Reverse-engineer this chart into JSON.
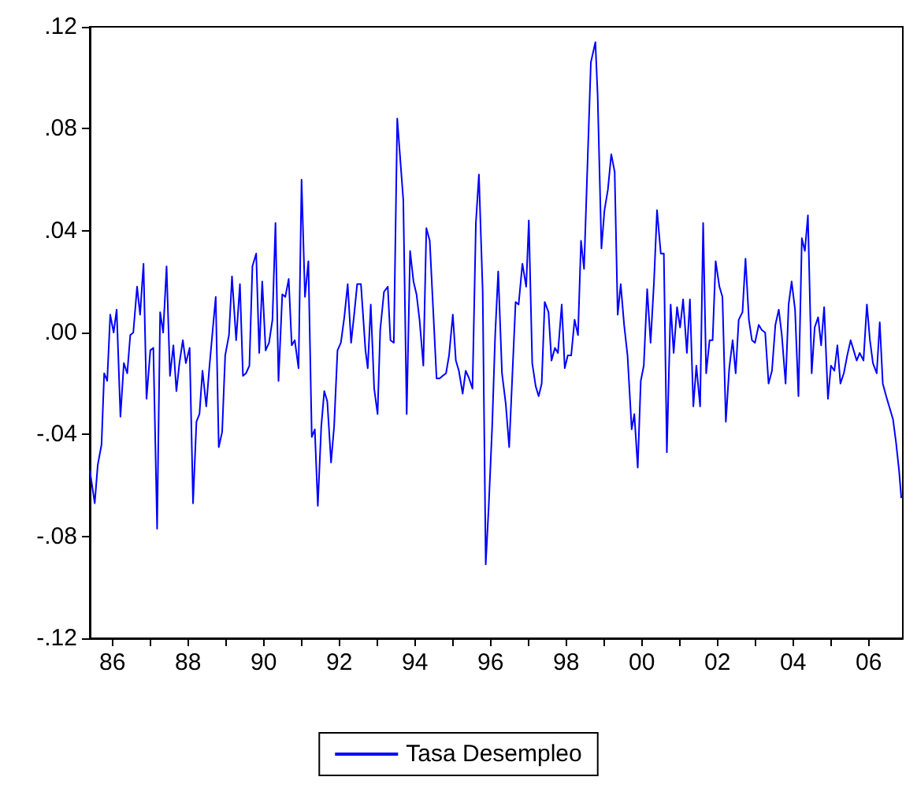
{
  "chart_data": {
    "type": "line",
    "x": [
      1985.4,
      1985.53,
      1985.61,
      1985.71,
      1985.78,
      1985.86,
      1985.94,
      1986.03,
      1986.11,
      1986.21,
      1986.3,
      1986.39,
      1986.47,
      1986.55,
      1986.65,
      1986.73,
      1986.82,
      1986.9,
      1987.0,
      1987.08,
      1987.18,
      1987.26,
      1987.34,
      1987.43,
      1987.52,
      1987.61,
      1987.69,
      1987.77,
      1987.86,
      1987.94,
      1988.04,
      1988.13,
      1988.22,
      1988.3,
      1988.38,
      1988.48,
      1988.56,
      1988.65,
      1988.73,
      1988.81,
      1988.9,
      1988.98,
      1989.08,
      1989.16,
      1989.27,
      1989.37,
      1989.45,
      1989.53,
      1989.62,
      1989.7,
      1989.8,
      1989.88,
      1989.96,
      1990.05,
      1990.14,
      1990.23,
      1990.31,
      1990.39,
      1990.49,
      1990.57,
      1990.66,
      1990.74,
      1990.82,
      1990.92,
      1991.0,
      1991.09,
      1991.18,
      1991.27,
      1991.35,
      1991.43,
      1991.52,
      1991.6,
      1991.68,
      1991.78,
      1991.86,
      1991.95,
      1992.04,
      1992.13,
      1992.22,
      1992.31,
      1992.39,
      1992.47,
      1992.57,
      1992.69,
      1992.75,
      1992.83,
      1992.92,
      1993.01,
      1993.08,
      1993.18,
      1993.28,
      1993.35,
      1993.44,
      1993.53,
      1993.69,
      1993.78,
      1993.87,
      1993.96,
      1994.04,
      1994.12,
      1994.22,
      1994.3,
      1994.39,
      1994.47,
      1994.57,
      1994.65,
      1994.73,
      1994.82,
      1994.9,
      1995.0,
      1995.08,
      1995.16,
      1995.26,
      1995.34,
      1995.43,
      1995.52,
      1995.61,
      1995.69,
      1995.79,
      1995.87,
      1995.95,
      1996.04,
      1996.12,
      1996.2,
      1996.3,
      1996.4,
      1996.49,
      1996.66,
      1996.74,
      1996.84,
      1996.94,
      1997.01,
      1997.1,
      1997.19,
      1997.27,
      1997.35,
      1997.43,
      1997.53,
      1997.61,
      1997.7,
      1997.78,
      1997.88,
      1997.96,
      1998.04,
      1998.13,
      1998.22,
      1998.31,
      1998.39,
      1998.47,
      1998.65,
      1998.77,
      1998.83,
      1998.93,
      1999.01,
      1999.1,
      1999.19,
      1999.28,
      1999.36,
      1999.44,
      1999.53,
      1999.62,
      1999.73,
      1999.8,
      1999.89,
      1999.97,
      2000.05,
      2000.14,
      2000.23,
      2000.32,
      2000.4,
      2000.5,
      2000.58,
      2000.66,
      2000.76,
      2000.84,
      2000.93,
      2001.01,
      2001.09,
      2001.19,
      2001.27,
      2001.36,
      2001.44,
      2001.54,
      2001.62,
      2001.7,
      2001.79,
      2001.87,
      2001.95,
      2002.05,
      2002.13,
      2002.22,
      2002.31,
      2002.4,
      2002.48,
      2002.56,
      2002.66,
      2002.74,
      2002.83,
      2002.91,
      2002.99,
      2003.09,
      2003.17,
      2003.26,
      2003.35,
      2003.44,
      2003.53,
      2003.62,
      2003.7,
      2003.8,
      2003.88,
      2003.96,
      2004.05,
      2004.14,
      2004.23,
      2004.31,
      2004.39,
      2004.49,
      2004.57,
      2004.66,
      2004.74,
      2004.82,
      2004.92,
      2005.0,
      2005.09,
      2005.17,
      2005.25,
      2005.34,
      2005.43,
      2005.52,
      2005.6,
      2005.68,
      2005.76,
      2005.86,
      2005.95,
      2006.03,
      2006.11,
      2006.21,
      2006.29,
      2006.37,
      2006.46,
      2006.54,
      2006.64,
      2006.72,
      2006.8,
      2006.86
    ],
    "series": [
      {
        "name": "Tasa Desempleo",
        "color": "#0000ff",
        "values": [
          -0.054,
          -0.067,
          -0.052,
          -0.044,
          -0.016,
          -0.019,
          0.007,
          0.0,
          0.009,
          -0.033,
          -0.012,
          -0.016,
          -0.001,
          0.0,
          0.018,
          0.007,
          0.027,
          -0.026,
          -0.007,
          -0.006,
          -0.077,
          0.008,
          0.0,
          0.026,
          -0.017,
          -0.005,
          -0.023,
          -0.012,
          -0.003,
          -0.012,
          -0.006,
          -0.067,
          -0.035,
          -0.032,
          -0.015,
          -0.029,
          -0.014,
          0.001,
          0.014,
          -0.045,
          -0.039,
          -0.009,
          -0.001,
          0.022,
          -0.003,
          0.019,
          -0.017,
          -0.016,
          -0.013,
          0.026,
          0.031,
          -0.008,
          0.02,
          -0.007,
          -0.004,
          0.005,
          0.043,
          -0.019,
          0.015,
          0.014,
          0.021,
          -0.005,
          -0.003,
          -0.014,
          0.06,
          0.014,
          0.028,
          -0.041,
          -0.038,
          -0.068,
          -0.037,
          -0.023,
          -0.027,
          -0.051,
          -0.037,
          -0.007,
          -0.004,
          0.006,
          0.019,
          -0.004,
          0.007,
          0.019,
          0.019,
          -0.007,
          -0.014,
          0.011,
          -0.022,
          -0.032,
          0.001,
          0.016,
          0.018,
          -0.003,
          -0.004,
          0.084,
          0.052,
          -0.032,
          0.032,
          0.02,
          0.015,
          0.005,
          -0.013,
          0.041,
          0.036,
          0.012,
          -0.018,
          -0.018,
          -0.017,
          -0.016,
          -0.009,
          0.007,
          -0.011,
          -0.015,
          -0.024,
          -0.015,
          -0.018,
          -0.022,
          0.043,
          0.062,
          0.016,
          -0.091,
          -0.068,
          -0.037,
          -0.001,
          0.024,
          -0.016,
          -0.028,
          -0.045,
          0.012,
          0.011,
          0.027,
          0.018,
          0.044,
          -0.012,
          -0.021,
          -0.025,
          -0.02,
          0.012,
          0.008,
          -0.011,
          -0.006,
          -0.008,
          0.011,
          -0.014,
          -0.009,
          -0.009,
          0.005,
          -0.001,
          0.036,
          0.025,
          0.106,
          0.114,
          0.093,
          0.033,
          0.048,
          0.056,
          0.07,
          0.063,
          0.007,
          0.019,
          0.003,
          -0.009,
          -0.038,
          -0.032,
          -0.053,
          -0.019,
          -0.013,
          0.017,
          -0.004,
          0.02,
          0.048,
          0.031,
          0.031,
          -0.047,
          0.011,
          -0.008,
          0.01,
          0.002,
          0.013,
          -0.008,
          0.013,
          -0.029,
          -0.013,
          -0.029,
          0.043,
          -0.016,
          -0.003,
          -0.003,
          0.028,
          0.018,
          0.014,
          -0.035,
          -0.014,
          -0.003,
          -0.016,
          0.005,
          0.008,
          0.029,
          0.005,
          -0.003,
          -0.004,
          0.003,
          0.001,
          0.0,
          -0.02,
          -0.015,
          0.003,
          0.009,
          -0.001,
          -0.02,
          0.011,
          0.02,
          0.009,
          -0.025,
          0.037,
          0.032,
          0.046,
          -0.016,
          0.002,
          0.006,
          -0.005,
          0.01,
          -0.026,
          -0.013,
          -0.015,
          -0.005,
          -0.02,
          -0.016,
          -0.009,
          -0.003,
          -0.007,
          -0.011,
          -0.008,
          -0.011,
          0.011,
          -0.003,
          -0.012,
          -0.016,
          0.004,
          -0.02,
          -0.025,
          -0.029,
          -0.034,
          -0.043,
          -0.054,
          -0.065
        ]
      }
    ],
    "xlim": [
      1985.4,
      2006.9
    ],
    "xticks": [
      {
        "value": 1986,
        "label": "86"
      },
      {
        "value": 1987,
        "label": null
      },
      {
        "value": 1988,
        "label": "88"
      },
      {
        "value": 1989,
        "label": null
      },
      {
        "value": 1990,
        "label": "90"
      },
      {
        "value": 1991,
        "label": null
      },
      {
        "value": 1992,
        "label": "92"
      },
      {
        "value": 1993,
        "label": null
      },
      {
        "value": 1994,
        "label": "94"
      },
      {
        "value": 1995,
        "label": null
      },
      {
        "value": 1996,
        "label": "96"
      },
      {
        "value": 1997,
        "label": null
      },
      {
        "value": 1998,
        "label": "98"
      },
      {
        "value": 1999,
        "label": null
      },
      {
        "value": 2000,
        "label": "00"
      },
      {
        "value": 2001,
        "label": null
      },
      {
        "value": 2002,
        "label": "02"
      },
      {
        "value": 2003,
        "label": null
      },
      {
        "value": 2004,
        "label": "04"
      },
      {
        "value": 2005,
        "label": null
      },
      {
        "value": 2006,
        "label": "06"
      }
    ],
    "ylim": [
      -0.12,
      0.12
    ],
    "yticks": [
      {
        "value": -0.12,
        "label": "-.12"
      },
      {
        "value": -0.08,
        "label": "-.08"
      },
      {
        "value": -0.04,
        "label": "-.04"
      },
      {
        "value": 0,
        "label": ".00"
      },
      {
        "value": 0.04,
        "label": ".04"
      },
      {
        "value": 0.08,
        "label": ".08"
      },
      {
        "value": 0.12,
        "label": ".12"
      }
    ],
    "grid": false,
    "legend": "bottom",
    "marker": "none",
    "line_style": "solid"
  }
}
